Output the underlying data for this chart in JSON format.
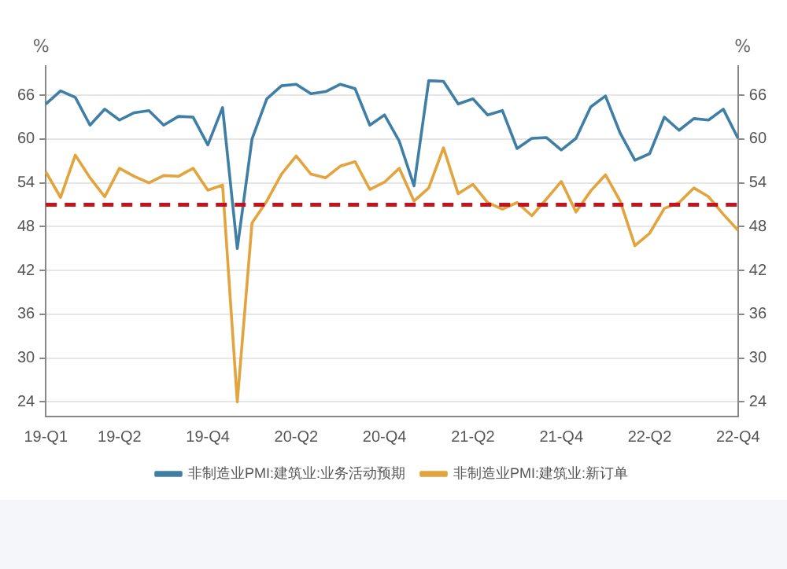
{
  "chart_data": {
    "type": "line",
    "categories": [
      "19-Q1",
      null,
      null,
      null,
      null,
      "19-Q2",
      null,
      null,
      null,
      null,
      null,
      "19-Q4",
      null,
      null,
      null,
      null,
      null,
      "20-Q2",
      null,
      null,
      null,
      null,
      null,
      "20-Q4",
      null,
      null,
      null,
      null,
      null,
      "21-Q2",
      null,
      null,
      null,
      null,
      null,
      "21-Q4",
      null,
      null,
      null,
      null,
      null,
      "22-Q2",
      null,
      null,
      null,
      null,
      null,
      "22-Q4"
    ],
    "series": [
      {
        "name": "非制造业PMI:建筑业:业务活动预期",
        "color": "#3f7fa6",
        "values": [
          64.8,
          66.6,
          65.7,
          61.9,
          64.1,
          62.6,
          63.6,
          63.9,
          61.9,
          63.1,
          63.0,
          59.2,
          64.3,
          45,
          60.0,
          65.5,
          67.3,
          67.5,
          66.2,
          66.5,
          67.5,
          66.9,
          61.9,
          63.3,
          59.7,
          53.6,
          68.0,
          67.9,
          64.8,
          65.5,
          63.3,
          63.9,
          58.7,
          60.1,
          60.2,
          58.5,
          60.1,
          64.4,
          65.9,
          60.8,
          57.1,
          58.0,
          63.0,
          61.2,
          62.8,
          62.6,
          64.1,
          60.1
        ]
      },
      {
        "name": "非制造业PMI:建筑业:新订单",
        "color": "#e3a33d",
        "values": [
          55.5,
          52.0,
          57.8,
          54.7,
          52.1,
          56.0,
          54.9,
          54.0,
          55.0,
          54.9,
          56.0,
          53.0,
          53.7,
          24,
          48.5,
          51.5,
          55.2,
          57.7,
          55.2,
          54.7,
          56.3,
          56.9,
          53.1,
          54.1,
          56.0,
          51.5,
          53.3,
          58.8,
          52.5,
          53.8,
          51.3,
          50.4,
          51.3,
          49.5,
          51.8,
          54.2,
          50.0,
          52.9,
          55.1,
          51.5,
          45.4,
          47.1,
          50.5,
          51.3,
          53.3,
          52.1,
          49.7,
          47.5
        ]
      }
    ],
    "ylabel": "%",
    "y2label": "%",
    "ylim": [
      22,
      70
    ],
    "yticks": [
      24,
      30,
      36,
      42,
      48,
      54,
      60,
      66
    ],
    "y2lim": [
      22,
      70
    ],
    "y2ticks": [
      24,
      30,
      36,
      42,
      48,
      54,
      60,
      66
    ],
    "ref_lines": [
      {
        "axis": "y",
        "value": 51,
        "color": "#c0151f",
        "line_style": "dashed"
      }
    ],
    "grid": "y",
    "legend": "bottom",
    "marker": "none",
    "line_style": "solid"
  }
}
